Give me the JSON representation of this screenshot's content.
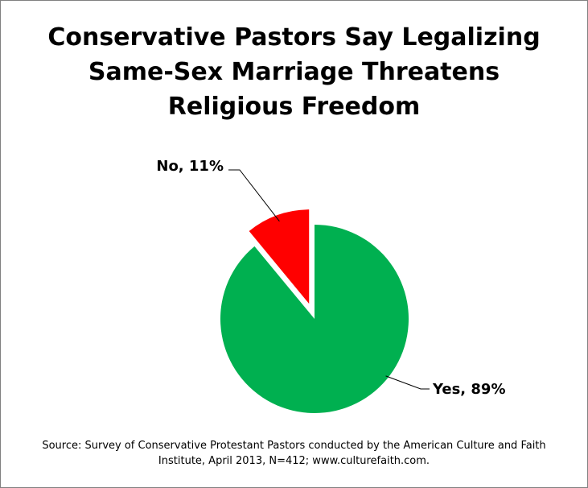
{
  "chart_data": {
    "type": "pie",
    "title_lines": [
      "Conservative Pastors Say Legalizing",
      "Same-Sex Marriage Threatens",
      "Religious Freedom"
    ],
    "slices": [
      {
        "label": "Yes, 89%",
        "name": "Yes",
        "value": 89,
        "color": "#00b050"
      },
      {
        "label": "No, 11%",
        "name": "No",
        "value": 11,
        "color": "#ff0000",
        "exploded": true
      }
    ],
    "legend": "none",
    "source_lines": [
      "Source: Survey of Conservative Protestant Pastors conducted by the American Culture and Faith",
      "Institute, April 2013, N=412; www.culturefaith.com."
    ]
  }
}
